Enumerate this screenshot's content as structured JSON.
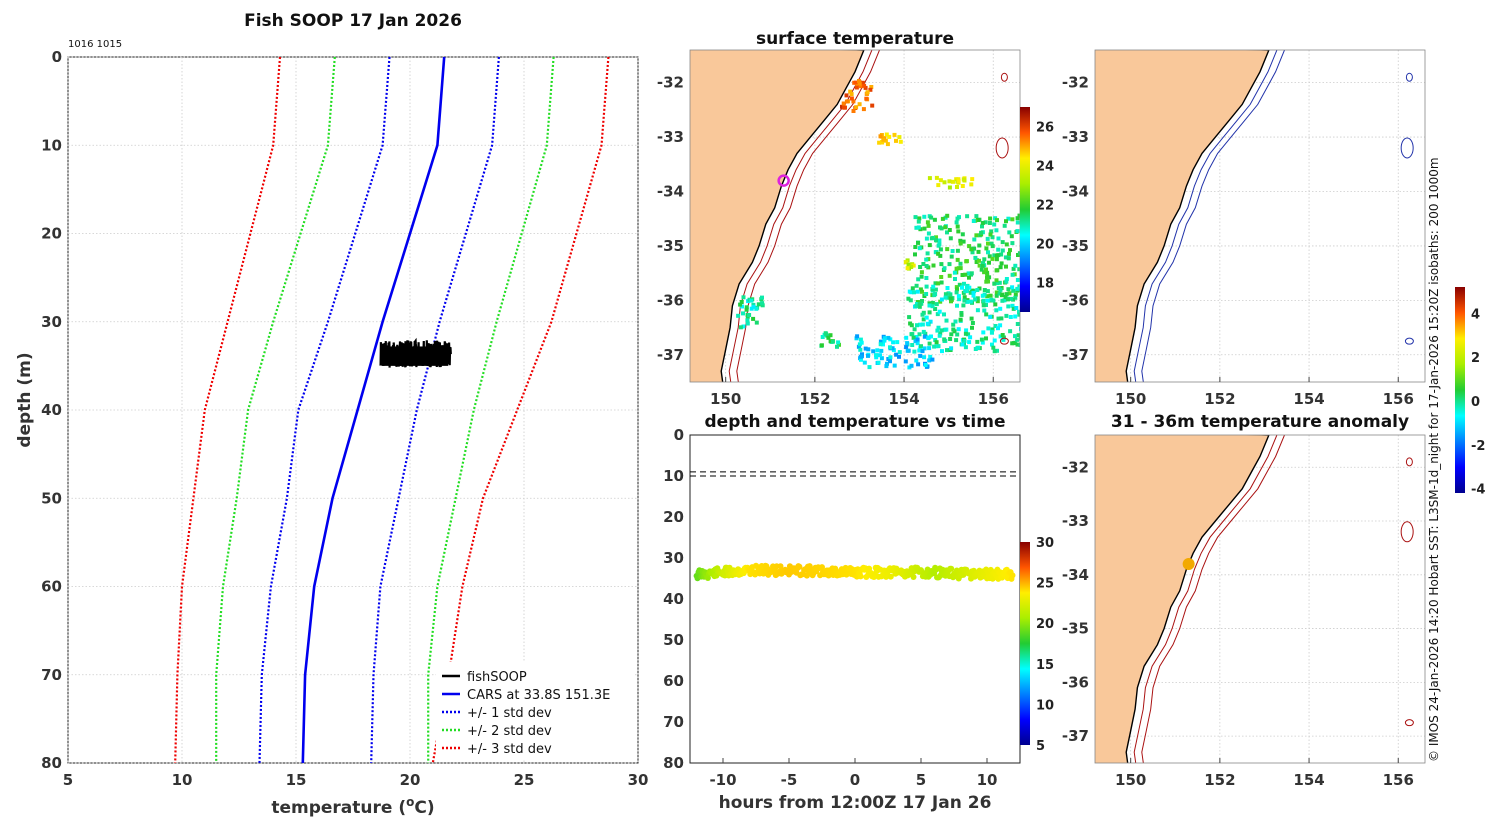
{
  "chart_data": [
    {
      "id": "profile",
      "type": "line",
      "title": "Fish SOOP 17 Jan 2026",
      "ids_label": "1016 1015",
      "xlabel": "temperature (°C)",
      "xlabel_parts": [
        "temperature (",
        "o",
        "C)"
      ],
      "ylabel": "depth (m)",
      "xlim": [
        5,
        30
      ],
      "ylim": [
        0,
        80
      ],
      "xticks": [
        "5",
        "10",
        "15",
        "20",
        "25",
        "30"
      ],
      "yticks": [
        "0",
        "10",
        "20",
        "30",
        "40",
        "50",
        "60",
        "70",
        "80"
      ],
      "depths": [
        0,
        10,
        30,
        40,
        50,
        60,
        70,
        80
      ],
      "series": [
        {
          "name": "CARS at 33.8S 151.3E",
          "color": "#0000ee",
          "style": "solid",
          "values": [
            21.5,
            21.2,
            18.8,
            17.7,
            16.6,
            15.8,
            15.4,
            15.3
          ]
        },
        {
          "name": "+/- 1 std dev upper",
          "color": "#0000ee",
          "style": "dotted",
          "values": [
            23.9,
            23.6,
            21.3,
            20.3,
            19.5,
            18.7,
            18.4,
            18.3
          ]
        },
        {
          "name": "+/- 1 std dev lower",
          "color": "#0000ee",
          "style": "dotted",
          "values": [
            19.1,
            18.8,
            16.4,
            15.1,
            14.6,
            13.9,
            13.5,
            13.4
          ]
        },
        {
          "name": "+/- 2 std dev upper",
          "color": "#22dd22",
          "style": "dotted",
          "values": [
            26.3,
            26.0,
            23.8,
            22.8,
            22.0,
            21.2,
            20.8,
            20.8
          ]
        },
        {
          "name": "+/- 2 std dev lower",
          "color": "#22dd22",
          "style": "dotted",
          "values": [
            16.7,
            16.4,
            14.0,
            12.9,
            12.4,
            11.8,
            11.5,
            11.5
          ]
        },
        {
          "name": "+/- 3 std dev upper",
          "color": "#ee0000",
          "style": "dotted",
          "values": [
            28.7,
            28.4,
            26.2,
            24.7,
            23.2,
            22.3,
            21.7,
            21.0
          ]
        },
        {
          "name": "+/- 3 std dev lower",
          "color": "#ee0000",
          "style": "dotted",
          "values": [
            14.3,
            14.0,
            12.0,
            11.0,
            10.5,
            10.0,
            9.8,
            9.7
          ]
        }
      ],
      "fishsoop": {
        "temp_range": [
          18.7,
          21.8
        ],
        "depth_range": [
          31.5,
          35.5
        ]
      },
      "legend": [
        {
          "label": "fishSOOP",
          "color": "#000000",
          "style": "solid"
        },
        {
          "label": "CARS at 33.8S 151.3E",
          "color": "#0000ee",
          "style": "solid"
        },
        {
          "label": "+/- 1 std dev",
          "color": "#0000ee",
          "style": "dotted"
        },
        {
          "label": "+/- 2 std dev",
          "color": "#22dd22",
          "style": "dotted"
        },
        {
          "label": "+/- 3 std dev",
          "color": "#ee0000",
          "style": "dotted"
        }
      ],
      "legend_position": "lower-right"
    },
    {
      "id": "sst_map",
      "type": "heatmap",
      "title": "surface temperature",
      "xlim": [
        149.2,
        156.6
      ],
      "ylim": [
        -37.5,
        -31.4
      ],
      "xticks": [
        "150",
        "152",
        "154",
        "156"
      ],
      "yticks": [
        "-32",
        "-33",
        "-34",
        "-35",
        "-36",
        "-37"
      ],
      "colorbar": {
        "min": 16.5,
        "max": 27,
        "ticks": [
          "18",
          "20",
          "22",
          "24",
          "26"
        ]
      },
      "marker": {
        "lon": 151.3,
        "lat": -33.8,
        "color": "#dd22dd"
      }
    },
    {
      "id": "bathy_map",
      "type": "heatmap",
      "title": "",
      "xlim": [
        149.2,
        156.6
      ],
      "ylim": [
        -37.5,
        -31.4
      ],
      "xticks": [
        "150",
        "152",
        "154",
        "156"
      ],
      "yticks": [
        "-32",
        "-33",
        "-34",
        "-35",
        "-36",
        "-37"
      ]
    },
    {
      "id": "depth_time",
      "type": "scatter",
      "title": "depth and temperature vs time",
      "xlabel": "hours from 12:00Z 17 Jan 26",
      "xlim": [
        -12.5,
        12.5
      ],
      "ylim": [
        0,
        80
      ],
      "xticks": [
        "-10",
        "-5",
        "0",
        "5",
        "10"
      ],
      "yticks": [
        "0",
        "10",
        "20",
        "30",
        "40",
        "50",
        "60",
        "70",
        "80"
      ],
      "reference_depths": [
        9,
        10
      ],
      "points": [
        {
          "t": -12,
          "depth": 34,
          "temp": 19
        },
        {
          "t": -10,
          "depth": 33.5,
          "temp": 22
        },
        {
          "t": -8,
          "depth": 33,
          "temp": 24
        },
        {
          "t": -5,
          "depth": 33,
          "temp": 24.5
        },
        {
          "t": 0,
          "depth": 33.5,
          "temp": 24
        },
        {
          "t": 3,
          "depth": 33.5,
          "temp": 23
        },
        {
          "t": 6,
          "depth": 33.5,
          "temp": 21
        },
        {
          "t": 8,
          "depth": 34,
          "temp": 22
        },
        {
          "t": 12,
          "depth": 34,
          "temp": 24
        }
      ],
      "colorbar": {
        "min": 5,
        "max": 30,
        "ticks": [
          "5",
          "10",
          "15",
          "20",
          "25",
          "30"
        ]
      }
    },
    {
      "id": "anomaly_map",
      "type": "heatmap",
      "title": "31 - 36m temperature anomaly",
      "xlim": [
        149.2,
        156.6
      ],
      "ylim": [
        -37.5,
        -31.4
      ],
      "xticks": [
        "150",
        "152",
        "154",
        "156"
      ],
      "yticks": [
        "-32",
        "-33",
        "-34",
        "-35",
        "-36",
        "-37"
      ],
      "colorbar": {
        "min": -4.2,
        "max": 5.2,
        "ticks": [
          "4",
          "2",
          "0",
          "-2",
          "-4"
        ]
      },
      "marker": {
        "lon": 151.3,
        "lat": -33.8,
        "value": 2.3
      }
    }
  ],
  "credit": "© IMOS 24-Jan-2026 14:20 Hobart SST: L3SM-1d_night for 17-Jan-2026 15:20Z isobaths: 200  1000m",
  "colors": {
    "land": "#f9c89a",
    "isobath_shelf": "#aa1111",
    "isobath_bathy": "#2233aa"
  }
}
